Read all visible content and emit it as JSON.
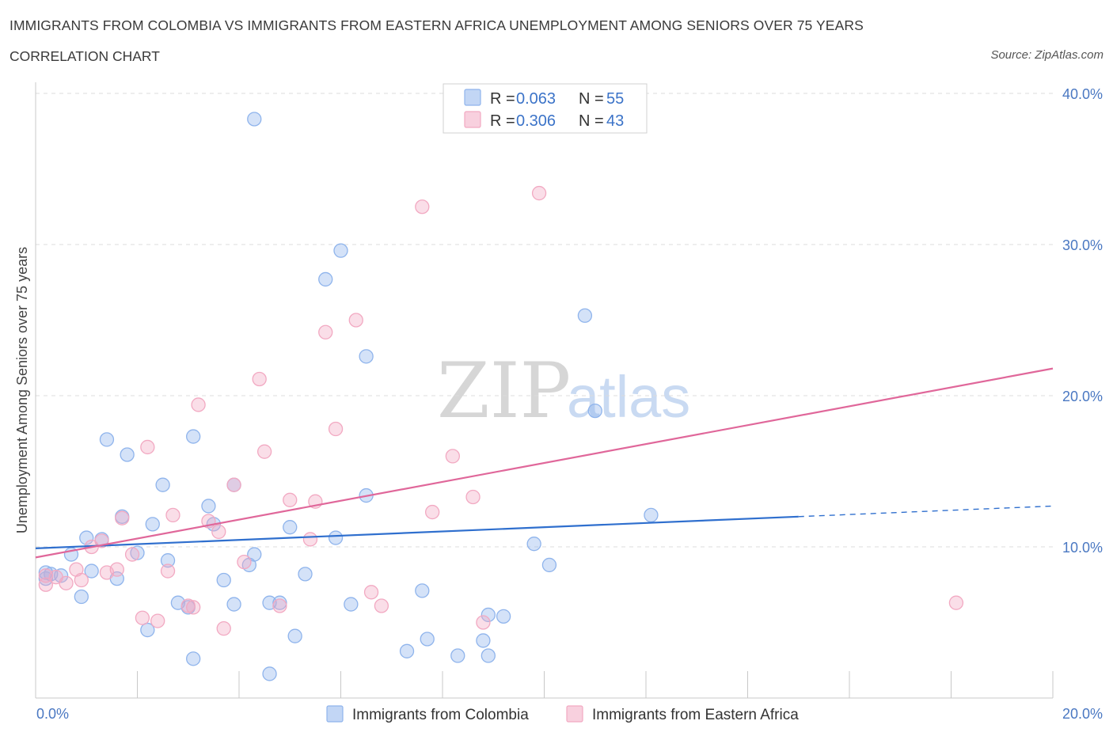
{
  "title": "IMMIGRANTS FROM COLOMBIA VS IMMIGRANTS FROM EASTERN AFRICA UNEMPLOYMENT AMONG SENIORS OVER 75 YEARS",
  "subtitle": "CORRELATION CHART",
  "source": "Source: ZipAtlas.com",
  "watermark": {
    "zip": "ZIP",
    "atlas": "atlas"
  },
  "legend": {
    "r_label": "R =",
    "n_label": "N =",
    "entries": [
      {
        "r": "0.063",
        "n": "55"
      },
      {
        "r": "0.306",
        "n": "43"
      }
    ]
  },
  "chart_data": {
    "type": "scatter",
    "title": "IMMIGRANTS FROM COLOMBIA VS IMMIGRANTS FROM EASTERN AFRICA UNEMPLOYMENT AMONG SENIORS OVER 75 YEARS",
    "ylabel": "Unemployment Among Seniors over 75 years",
    "xlabel": "",
    "xlim": [
      0,
      20
    ],
    "ylim": [
      0,
      40
    ],
    "x_tick_labels": [
      "0.0%",
      "20.0%"
    ],
    "y_ticks": [
      10,
      20,
      30,
      40
    ],
    "y_tick_labels": [
      "10.0%",
      "20.0%",
      "30.0%",
      "40.0%"
    ],
    "grid": true,
    "legend_placement": "top-center",
    "series": [
      {
        "name": "Immigrants from Colombia",
        "color": "#8fb4ec",
        "line_color": "#2f6fce",
        "trend": {
          "x": [
            0,
            15
          ],
          "y": [
            9.9,
            12.0
          ],
          "dashed_to": [
            20,
            12.7
          ]
        },
        "points": [
          {
            "x": 4.3,
            "y": 38.3
          },
          {
            "x": 6.0,
            "y": 29.6
          },
          {
            "x": 5.7,
            "y": 27.7
          },
          {
            "x": 10.8,
            "y": 25.3
          },
          {
            "x": 6.5,
            "y": 22.6
          },
          {
            "x": 11.0,
            "y": 19.0
          },
          {
            "x": 1.4,
            "y": 17.1
          },
          {
            "x": 3.1,
            "y": 17.3
          },
          {
            "x": 1.8,
            "y": 16.1
          },
          {
            "x": 2.5,
            "y": 14.1
          },
          {
            "x": 3.9,
            "y": 14.1
          },
          {
            "x": 6.5,
            "y": 13.4
          },
          {
            "x": 3.4,
            "y": 12.7
          },
          {
            "x": 1.7,
            "y": 12.0
          },
          {
            "x": 12.1,
            "y": 12.1
          },
          {
            "x": 2.3,
            "y": 11.5
          },
          {
            "x": 3.5,
            "y": 11.5
          },
          {
            "x": 5.0,
            "y": 11.3
          },
          {
            "x": 1.0,
            "y": 10.6
          },
          {
            "x": 1.3,
            "y": 10.5
          },
          {
            "x": 5.9,
            "y": 10.6
          },
          {
            "x": 9.8,
            "y": 10.2
          },
          {
            "x": 2.0,
            "y": 9.6
          },
          {
            "x": 0.7,
            "y": 9.5
          },
          {
            "x": 4.3,
            "y": 9.5
          },
          {
            "x": 2.6,
            "y": 9.1
          },
          {
            "x": 4.2,
            "y": 8.8
          },
          {
            "x": 10.1,
            "y": 8.8
          },
          {
            "x": 0.2,
            "y": 8.3
          },
          {
            "x": 0.5,
            "y": 8.1
          },
          {
            "x": 0.2,
            "y": 7.9
          },
          {
            "x": 1.1,
            "y": 8.4
          },
          {
            "x": 0.3,
            "y": 8.2
          },
          {
            "x": 5.3,
            "y": 8.2
          },
          {
            "x": 1.6,
            "y": 7.9
          },
          {
            "x": 3.7,
            "y": 7.8
          },
          {
            "x": 0.9,
            "y": 6.7
          },
          {
            "x": 7.6,
            "y": 7.1
          },
          {
            "x": 2.8,
            "y": 6.3
          },
          {
            "x": 3.0,
            "y": 6.0
          },
          {
            "x": 3.9,
            "y": 6.2
          },
          {
            "x": 4.6,
            "y": 6.3
          },
          {
            "x": 4.8,
            "y": 6.3
          },
          {
            "x": 6.2,
            "y": 6.2
          },
          {
            "x": 8.9,
            "y": 5.5
          },
          {
            "x": 9.2,
            "y": 5.4
          },
          {
            "x": 2.2,
            "y": 4.5
          },
          {
            "x": 5.1,
            "y": 4.1
          },
          {
            "x": 7.7,
            "y": 3.9
          },
          {
            "x": 8.8,
            "y": 3.8
          },
          {
            "x": 7.3,
            "y": 3.1
          },
          {
            "x": 3.1,
            "y": 2.6
          },
          {
            "x": 8.3,
            "y": 2.8
          },
          {
            "x": 8.9,
            "y": 2.8
          },
          {
            "x": 4.6,
            "y": 1.6
          }
        ]
      },
      {
        "name": "Immigrants from Eastern Africa",
        "color": "#f2a9c2",
        "line_color": "#e0679a",
        "trend": {
          "x": [
            0,
            20
          ],
          "y": [
            9.3,
            21.8
          ]
        },
        "points": [
          {
            "x": 9.9,
            "y": 33.4
          },
          {
            "x": 7.6,
            "y": 32.5
          },
          {
            "x": 6.3,
            "y": 25.0
          },
          {
            "x": 5.7,
            "y": 24.2
          },
          {
            "x": 4.4,
            "y": 21.1
          },
          {
            "x": 3.2,
            "y": 19.4
          },
          {
            "x": 5.9,
            "y": 17.8
          },
          {
            "x": 2.2,
            "y": 16.6
          },
          {
            "x": 4.5,
            "y": 16.3
          },
          {
            "x": 8.2,
            "y": 16.0
          },
          {
            "x": 3.9,
            "y": 14.1
          },
          {
            "x": 8.6,
            "y": 13.3
          },
          {
            "x": 5.0,
            "y": 13.1
          },
          {
            "x": 5.5,
            "y": 13.0
          },
          {
            "x": 7.8,
            "y": 12.3
          },
          {
            "x": 2.7,
            "y": 12.1
          },
          {
            "x": 1.7,
            "y": 11.9
          },
          {
            "x": 3.4,
            "y": 11.7
          },
          {
            "x": 3.6,
            "y": 11.0
          },
          {
            "x": 5.4,
            "y": 10.5
          },
          {
            "x": 1.3,
            "y": 10.4
          },
          {
            "x": 1.1,
            "y": 10.0
          },
          {
            "x": 1.9,
            "y": 9.5
          },
          {
            "x": 4.1,
            "y": 9.0
          },
          {
            "x": 0.8,
            "y": 8.5
          },
          {
            "x": 1.6,
            "y": 8.5
          },
          {
            "x": 2.6,
            "y": 8.4
          },
          {
            "x": 1.4,
            "y": 8.3
          },
          {
            "x": 0.2,
            "y": 8.1
          },
          {
            "x": 0.4,
            "y": 8.0
          },
          {
            "x": 0.9,
            "y": 7.8
          },
          {
            "x": 0.6,
            "y": 7.6
          },
          {
            "x": 0.2,
            "y": 7.5
          },
          {
            "x": 6.6,
            "y": 7.0
          },
          {
            "x": 18.1,
            "y": 6.3
          },
          {
            "x": 3.0,
            "y": 6.1
          },
          {
            "x": 4.8,
            "y": 6.1
          },
          {
            "x": 6.8,
            "y": 6.1
          },
          {
            "x": 2.1,
            "y": 5.3
          },
          {
            "x": 2.4,
            "y": 5.1
          },
          {
            "x": 8.8,
            "y": 5.0
          },
          {
            "x": 3.7,
            "y": 4.6
          },
          {
            "x": 3.1,
            "y": 6.0
          }
        ]
      }
    ]
  }
}
